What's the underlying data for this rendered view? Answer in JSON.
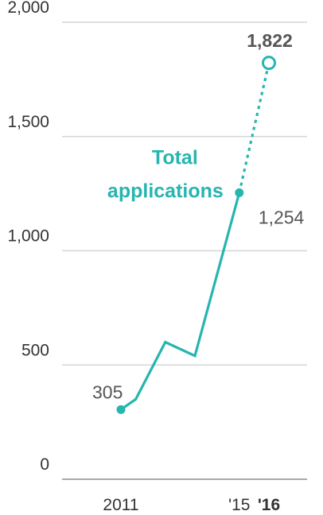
{
  "chart_data": {
    "type": "line",
    "title": "",
    "xlabel": "",
    "ylabel": "",
    "ylim": [
      0,
      2000
    ],
    "xlim": [
      2011,
      2016
    ],
    "grid": true,
    "y_ticks": [
      {
        "value": 0,
        "label": "0"
      },
      {
        "value": 500,
        "label": "500"
      },
      {
        "value": 1000,
        "label": "1,000"
      },
      {
        "value": 1500,
        "label": "1,500"
      },
      {
        "value": 2000,
        "label": "2,000"
      }
    ],
    "x_ticks": [
      {
        "value": 2011,
        "label": "2011",
        "bold": false
      },
      {
        "value": 2015,
        "label": "'15",
        "bold": false
      },
      {
        "value": 2016,
        "label": "'16",
        "bold": true
      }
    ],
    "series": [
      {
        "name": "Total applications",
        "color": "#27b5b0",
        "x": [
          2011,
          2011.5,
          2012.5,
          2013.5,
          2015,
          2016
        ],
        "values": [
          305,
          350,
          600,
          540,
          1254,
          1822
        ],
        "projected_from_index": 4
      }
    ],
    "annotations": [
      {
        "x": 2011,
        "y": 305,
        "text": "305",
        "bold": false
      },
      {
        "x": 2015,
        "y": 1254,
        "text": "1,254",
        "bold": false
      },
      {
        "x": 2016,
        "y": 1822,
        "text": "1,822",
        "bold": true
      }
    ]
  }
}
